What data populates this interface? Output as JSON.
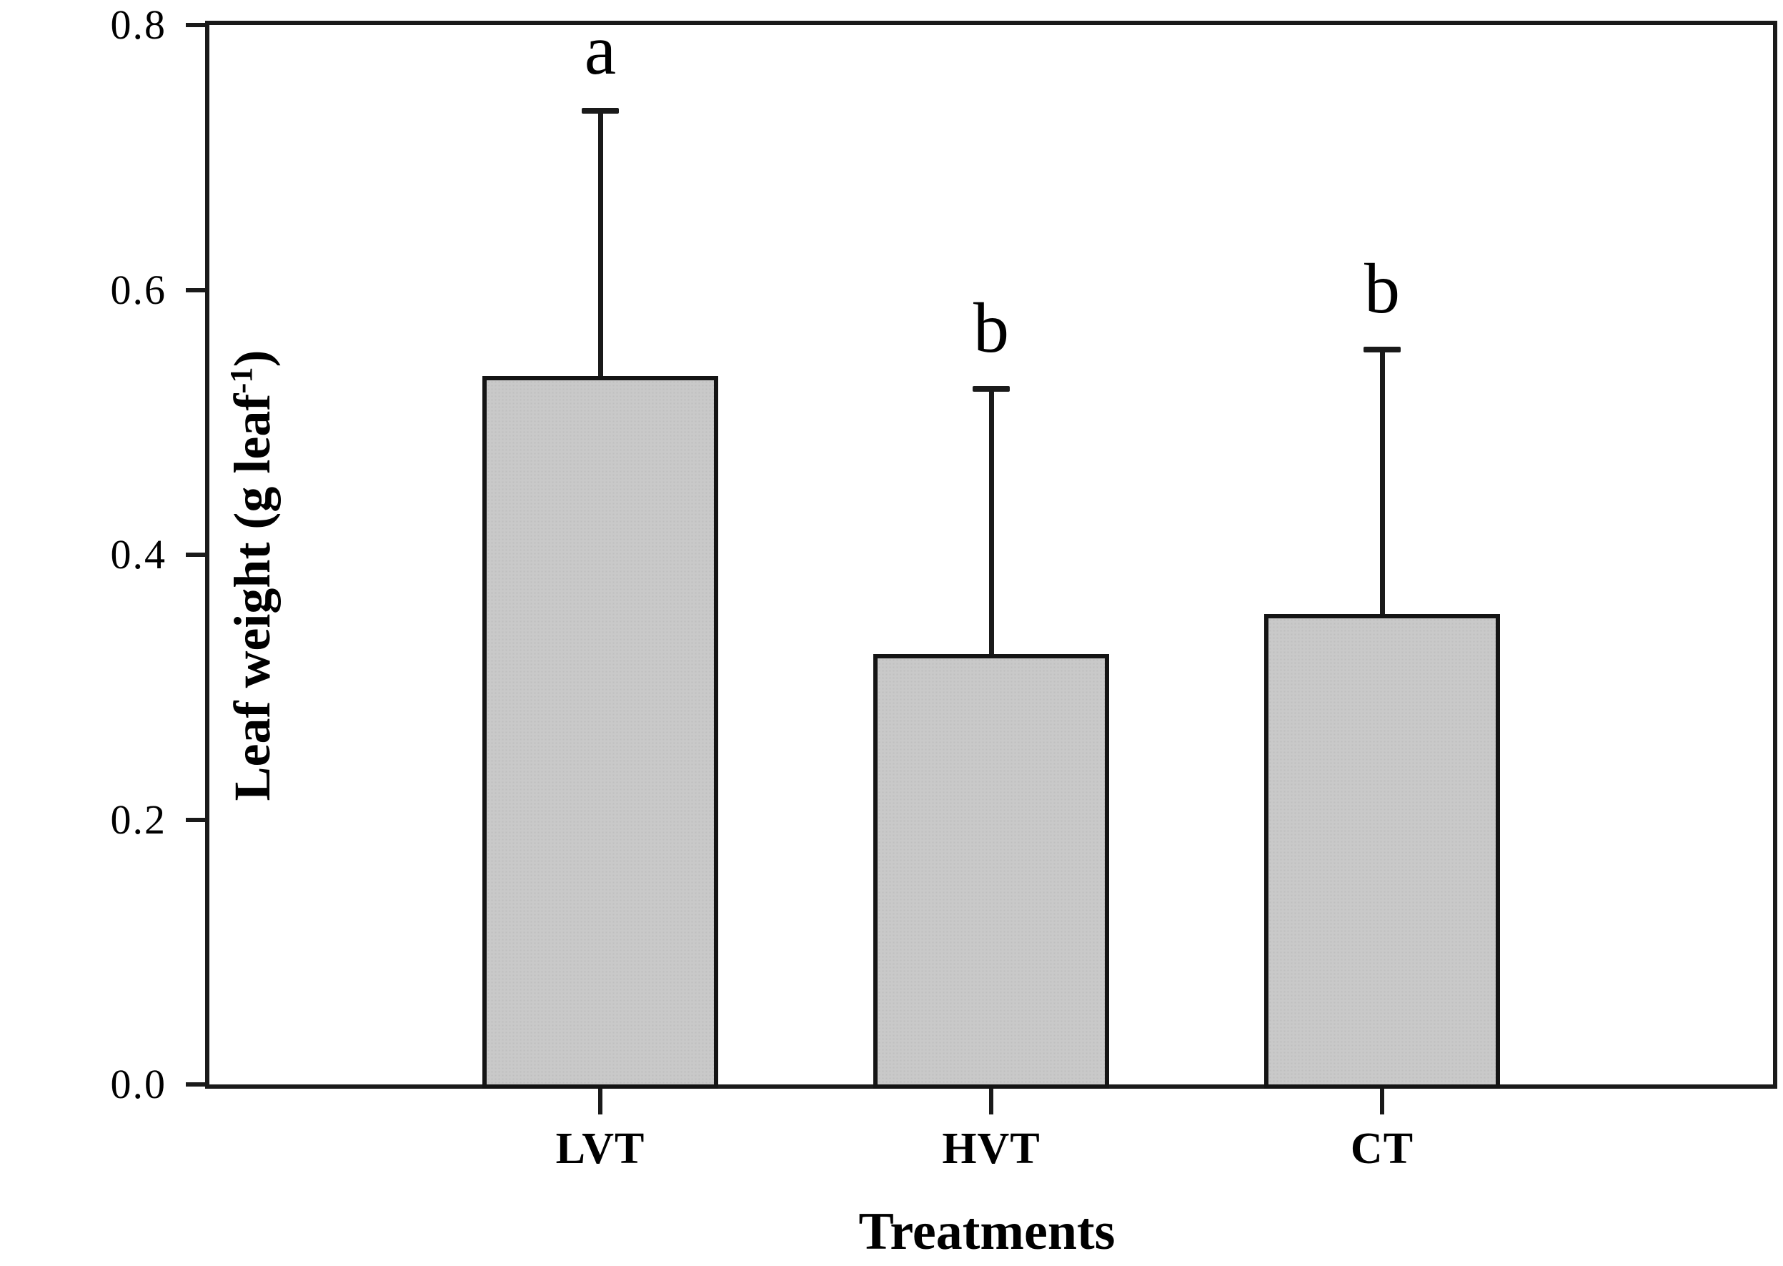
{
  "figure": {
    "x_axis_title": "Treatments",
    "y_axis_title_prefix": "Leaf weight (g leaf",
    "y_axis_title_sup": "-1",
    "y_axis_title_suffix": ")"
  },
  "chart_data": {
    "type": "bar",
    "title": "",
    "xlabel": "Treatments",
    "ylabel": "Leaf weight (g leaf^-1)",
    "categories": [
      "LVT",
      "HVT",
      "CT"
    ],
    "values": [
      0.535,
      0.325,
      0.355
    ],
    "errors_upper": [
      0.2,
      0.2,
      0.2
    ],
    "sig_letters": [
      "a",
      "b",
      "b"
    ],
    "ylim": [
      0.0,
      0.8
    ],
    "y_ticks": [
      "0.0",
      "0.2",
      "0.4",
      "0.6",
      "0.8"
    ],
    "grid": false,
    "legend": "none",
    "bar_color": "#c9c9c9",
    "bar_border_color": "#141414",
    "axis_color": "#1a1a1a"
  }
}
